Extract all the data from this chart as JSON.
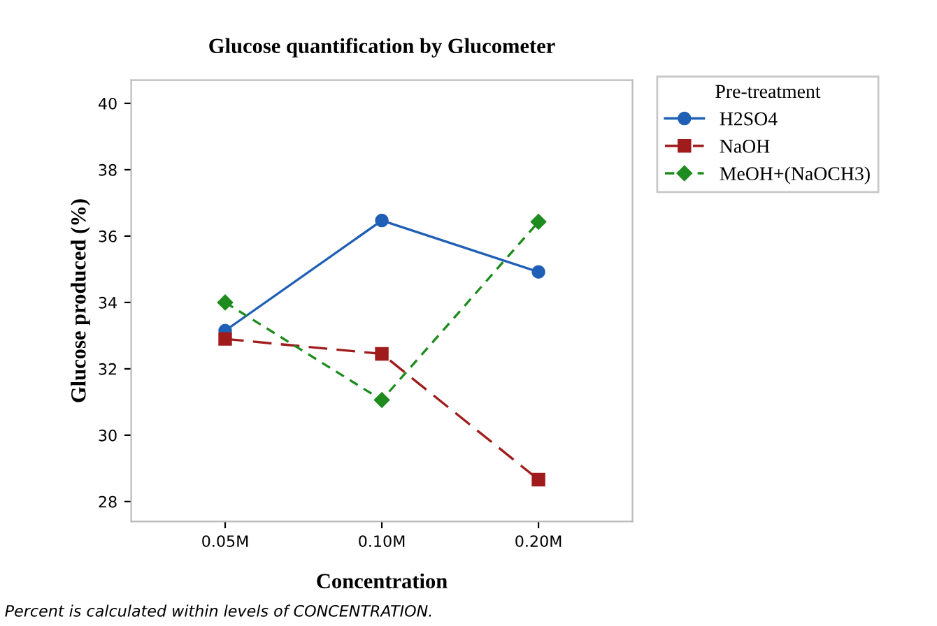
{
  "chart_data": {
    "type": "line",
    "title": "Glucose quantification by Glucometer",
    "xlabel": "Concentration",
    "ylabel": "Glucose produced (%)",
    "legend_title": "Pre-treatment",
    "categories": [
      "0.05M",
      "0.10M",
      "0.20M"
    ],
    "series": [
      {
        "name": "H2SO4",
        "color": "#1f5fb5",
        "marker": "circle",
        "line_style": "solid",
        "values": [
          33.15,
          36.47,
          34.92
        ]
      },
      {
        "name": "NaOH",
        "color": "#a01c1c",
        "marker": "square",
        "line_style": "dashed",
        "values": [
          32.9,
          32.45,
          28.66
        ]
      },
      {
        "name": "MeOH+(NaOCH3)",
        "color": "#1e8c1e",
        "marker": "diamond",
        "line_style": "dotted",
        "values": [
          34.0,
          31.06,
          36.43
        ]
      }
    ],
    "ylim": [
      27.4,
      40.7
    ],
    "yticks": [
      28,
      30,
      32,
      34,
      36,
      38,
      40
    ],
    "grid": false,
    "legend": "top right",
    "annotations": [
      "Percent is calculated within levels of CONCENTRATION."
    ]
  }
}
